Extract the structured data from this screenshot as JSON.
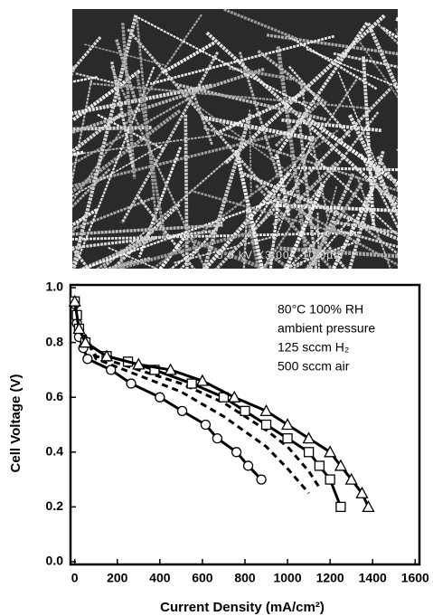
{
  "image": {
    "scale_bar_text": "5.0 kV X3.00K 10.0µm"
  },
  "chart_data": {
    "type": "line",
    "x_label": "Current Density (mA/cm²)",
    "y_label": "Cell Voltage (V)",
    "annotations": [
      "80°C 100% RH",
      "ambient pressure",
      "125 sccm H₂",
      "500 sccm air"
    ],
    "xlim": [
      -20,
      1620
    ],
    "xticks": [
      0,
      200,
      400,
      600,
      800,
      1000,
      1200,
      1400,
      1600
    ],
    "ylim": [
      -0.01,
      1.01
    ],
    "yticks": [
      {
        "value": 0,
        "label": "0.0"
      },
      0.2,
      0.4,
      0.6,
      0.8,
      {
        "value": 1,
        "label": "1.0"
      }
    ],
    "series": [
      {
        "color": "#000000",
        "marker": "circle",
        "dashed": false,
        "x": [
          0,
          10,
          20,
          40,
          60,
          170,
          265,
          400,
          505,
          615,
          670,
          760,
          815,
          877
        ],
        "values": [
          0.94,
          0.87,
          0.82,
          0.78,
          0.74,
          0.7,
          0.65,
          0.6,
          0.55,
          0.5,
          0.45,
          0.4,
          0.35,
          0.3
        ]
      },
      {
        "color": "#000000",
        "marker": "none",
        "dashed": true,
        "x": [
          0,
          100,
          300,
          500,
          700,
          900,
          1000,
          1100
        ],
        "values": [
          0.9,
          0.74,
          0.68,
          0.62,
          0.53,
          0.42,
          0.34,
          0.25
        ]
      },
      {
        "color": "#000000",
        "marker": "none",
        "dashed": true,
        "x": [
          0,
          100,
          300,
          500,
          700,
          900,
          1000,
          1100,
          1150
        ],
        "values": [
          0.9,
          0.75,
          0.7,
          0.65,
          0.58,
          0.48,
          0.42,
          0.33,
          0.27
        ]
      },
      {
        "color": "#000000",
        "marker": "square",
        "dashed": false,
        "x": [
          0,
          10,
          20,
          50,
          150,
          250,
          375,
          550,
          700,
          800,
          900,
          1000,
          1100,
          1150,
          1200,
          1250
        ],
        "values": [
          0.95,
          0.9,
          0.85,
          0.8,
          0.75,
          0.73,
          0.7,
          0.65,
          0.6,
          0.55,
          0.5,
          0.45,
          0.4,
          0.35,
          0.3,
          0.2
        ]
      },
      {
        "color": "#000000",
        "marker": "triangle",
        "dashed": false,
        "x": [
          0,
          20,
          50,
          150,
          300,
          450,
          600,
          750,
          900,
          1000,
          1100,
          1200,
          1250,
          1300,
          1350,
          1380
        ],
        "values": [
          0.95,
          0.85,
          0.8,
          0.75,
          0.72,
          0.7,
          0.66,
          0.6,
          0.55,
          0.5,
          0.45,
          0.4,
          0.35,
          0.3,
          0.25,
          0.2
        ]
      }
    ]
  }
}
